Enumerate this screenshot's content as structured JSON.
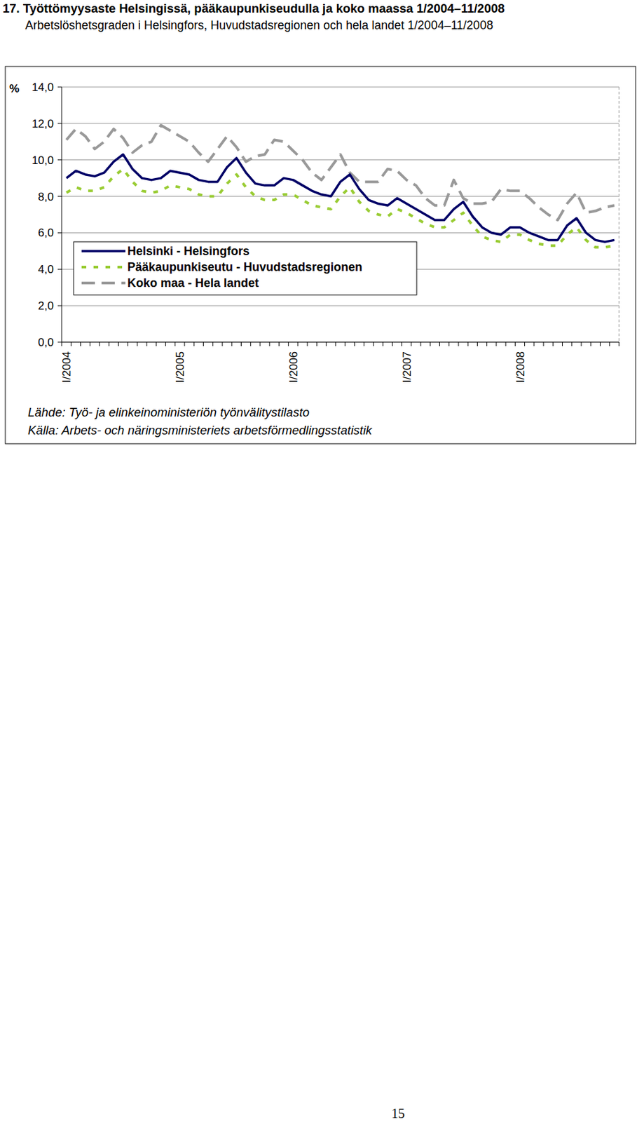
{
  "chart_data": {
    "type": "line",
    "title": "17. Työttömyysaste Helsingissä, pääkaupunkiseudulla ja koko maassa 1/2004–11/2008",
    "subtitle": "Arbetslöshetsgraden i Helsingfors, Huvudstadsregionen och hela landet 1/2004–11/2008",
    "y_label": "%",
    "source": [
      "Lähde: Työ- ja elinkeinoministeriön työnvälitystilasto",
      "Källa: Arbets- och näringsministeriets arbetsförmedlingsstatistik"
    ],
    "page": "15",
    "categories": [
      "I/2004",
      null,
      null,
      null,
      null,
      null,
      null,
      null,
      null,
      null,
      null,
      null,
      "I/2005",
      null,
      null,
      null,
      null,
      null,
      null,
      null,
      null,
      null,
      null,
      null,
      "I/2006",
      null,
      null,
      null,
      null,
      null,
      null,
      null,
      null,
      null,
      null,
      null,
      "I/2007",
      null,
      null,
      null,
      null,
      null,
      null,
      null,
      null,
      null,
      null,
      null,
      "I/2008",
      null,
      null,
      null,
      null,
      null,
      null,
      null,
      null,
      null,
      null
    ],
    "series": [
      {
        "name": "Helsinki - Helsingfors",
        "color": "#000066",
        "line_style": "solid",
        "values": [
          9.0,
          9.4,
          9.2,
          9.1,
          9.3,
          9.9,
          10.3,
          9.5,
          9.0,
          8.9,
          9.0,
          9.4,
          9.3,
          9.2,
          8.9,
          8.8,
          8.8,
          9.6,
          10.1,
          9.3,
          8.7,
          8.6,
          8.6,
          9.0,
          8.9,
          8.6,
          8.3,
          8.1,
          8.0,
          8.8,
          9.2,
          8.4,
          7.8,
          7.6,
          7.5,
          7.9,
          7.6,
          7.3,
          7.0,
          6.7,
          6.7,
          7.3,
          7.7,
          6.9,
          6.3,
          6.0,
          5.9,
          6.3,
          6.3,
          6.0,
          5.8,
          5.6,
          5.6,
          6.4,
          6.8,
          6.0,
          5.6,
          5.5,
          5.6
        ]
      },
      {
        "name": "Pääkaupunkiseutu - Huvudstadsregionen",
        "color": "#99cc33",
        "line_style": "dotted",
        "values": [
          8.2,
          8.5,
          8.3,
          8.3,
          8.5,
          9.1,
          9.5,
          8.8,
          8.3,
          8.2,
          8.3,
          8.6,
          8.5,
          8.4,
          8.1,
          8.0,
          8.0,
          8.7,
          9.2,
          8.5,
          8.0,
          7.8,
          7.8,
          8.1,
          8.1,
          7.8,
          7.5,
          7.4,
          7.3,
          8.0,
          8.5,
          7.7,
          7.2,
          7.0,
          6.9,
          7.3,
          7.1,
          6.8,
          6.5,
          6.3,
          6.3,
          6.7,
          7.1,
          6.4,
          5.8,
          5.6,
          5.5,
          5.9,
          5.9,
          5.6,
          5.4,
          5.3,
          5.3,
          5.9,
          6.3,
          5.6,
          5.2,
          5.2,
          5.3
        ]
      },
      {
        "name": "Koko maa - Hela landet",
        "color": "#999999",
        "line_style": "dashed",
        "values": [
          11.1,
          11.7,
          11.3,
          10.6,
          11.0,
          11.7,
          11.2,
          10.4,
          10.8,
          11.0,
          11.9,
          11.6,
          11.3,
          11.0,
          10.4,
          9.9,
          10.6,
          11.3,
          10.7,
          9.9,
          10.2,
          10.3,
          11.1,
          11.0,
          10.5,
          10.0,
          9.3,
          8.9,
          9.6,
          10.3,
          9.3,
          8.8,
          8.8,
          8.8,
          9.5,
          9.4,
          8.9,
          8.6,
          7.9,
          7.5,
          7.5,
          8.9,
          7.9,
          7.6,
          7.6,
          7.7,
          8.4,
          8.3,
          8.3,
          7.9,
          7.4,
          7.0,
          6.7,
          7.6,
          8.2,
          7.1,
          7.2,
          7.4,
          7.5
        ]
      }
    ],
    "ylim": [
      0,
      14
    ],
    "yticks": [
      {
        "value": 0,
        "label": "0,0"
      },
      {
        "value": 2,
        "label": "2,0"
      },
      {
        "value": 4,
        "label": "4,0"
      },
      {
        "value": 6,
        "label": "6,0"
      },
      {
        "value": 8,
        "label": "8,0"
      },
      {
        "value": 10,
        "label": "10,0"
      },
      {
        "value": 12,
        "label": "12,0"
      },
      {
        "value": 14,
        "label": "14,0"
      }
    ],
    "grid": true,
    "legend": "lower left"
  }
}
